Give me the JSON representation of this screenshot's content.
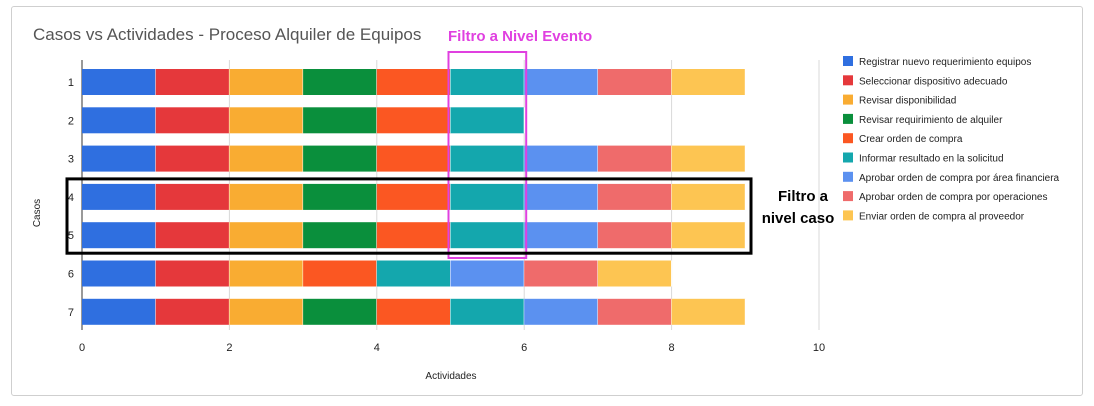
{
  "chart_data": {
    "type": "bar",
    "orientation": "horizontal",
    "stacked": true,
    "title": "Casos vs Actividades - Proceso Alquiler de Equipos",
    "xlabel": "Actividades",
    "ylabel": "Casos",
    "xlim": [
      0,
      10
    ],
    "xticks": [
      "0",
      "2",
      "4",
      "6",
      "8",
      "10"
    ],
    "grid": true,
    "legend_position": "right",
    "categories": [
      "1",
      "2",
      "3",
      "4",
      "5",
      "6",
      "7"
    ],
    "activities": [
      {
        "name": "Registrar nuevo requerimiento equipos",
        "color": "#2f6fe0"
      },
      {
        "name": "Seleccionar dispositivo adecuado",
        "color": "#e5383b"
      },
      {
        "name": "Revisar disponibilidad",
        "color": "#f9ac32"
      },
      {
        "name": "Revisar requirimiento de alquiler",
        "color": "#0a8f3c"
      },
      {
        "name": "Crear orden de compra",
        "color": "#fb5722"
      },
      {
        "name": "Informar resultado en la solicitud",
        "color": "#14a7ad"
      },
      {
        "name": "Aprobar orden de compra por área financiera",
        "color": "#5b91f0"
      },
      {
        "name": "Aprobar orden de compra por operaciones",
        "color": "#ef6b6b"
      },
      {
        "name": "Enviar orden de compra al proveedor",
        "color": "#fdc552"
      }
    ],
    "cases": [
      {
        "case": "1",
        "sequence": [
          0,
          1,
          2,
          3,
          4,
          5,
          6,
          7,
          8
        ]
      },
      {
        "case": "2",
        "sequence": [
          0,
          1,
          2,
          3,
          4,
          5
        ]
      },
      {
        "case": "3",
        "sequence": [
          0,
          1,
          2,
          3,
          4,
          5,
          6,
          7,
          8
        ]
      },
      {
        "case": "4",
        "sequence": [
          0,
          1,
          2,
          3,
          4,
          5,
          6,
          7,
          8
        ]
      },
      {
        "case": "5",
        "sequence": [
          0,
          1,
          2,
          3,
          4,
          5,
          6,
          7,
          8
        ]
      },
      {
        "case": "6",
        "sequence": [
          0,
          1,
          2,
          4,
          5,
          6,
          7,
          8
        ]
      },
      {
        "case": "7",
        "sequence": [
          0,
          1,
          2,
          3,
          4,
          5,
          6,
          7,
          8
        ]
      }
    ],
    "annotations": {
      "event_filter": {
        "label": "Filtro a Nivel Evento",
        "color": "#e040e0",
        "x_from": 5,
        "x_to": 6
      },
      "case_filter": {
        "line1": "Filtro a",
        "line2": "nivel caso",
        "color": "#000000",
        "cases": [
          "4",
          "5"
        ]
      }
    }
  }
}
